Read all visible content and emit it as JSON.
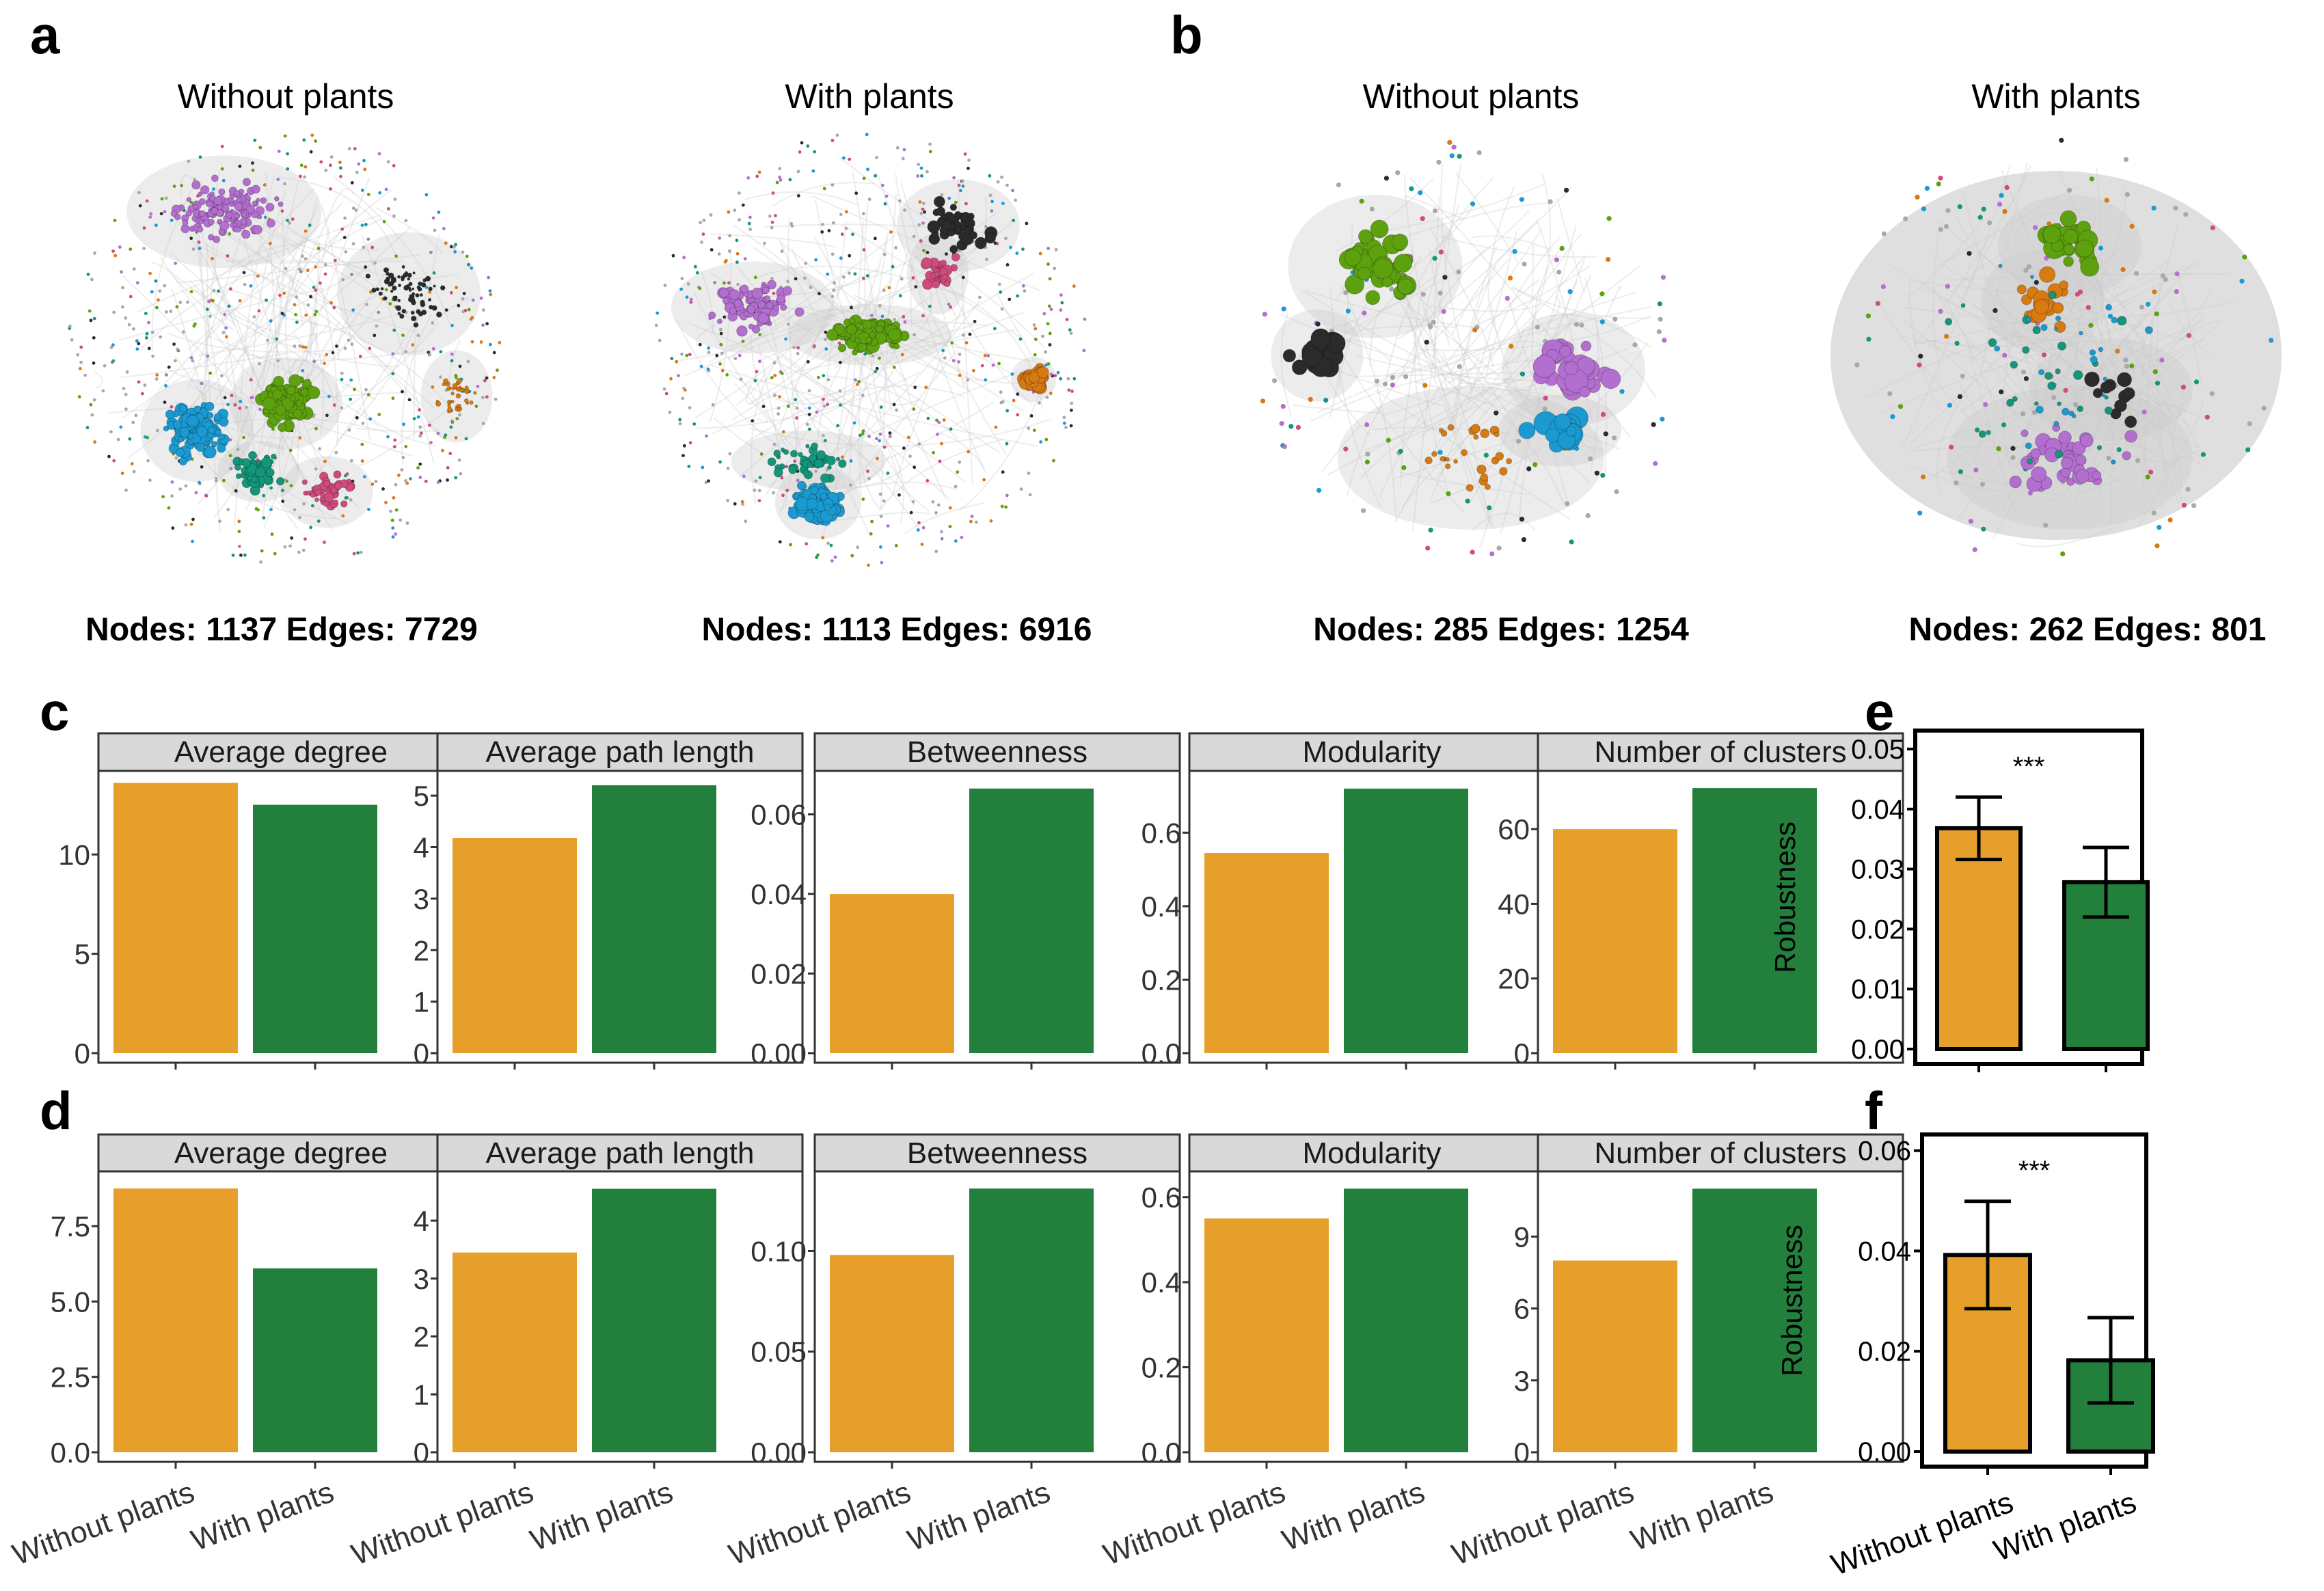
{
  "panel_labels": {
    "a": "a",
    "b": "b",
    "c": "c",
    "d": "d",
    "e": "e",
    "f": "f"
  },
  "networks": [
    {
      "panel": "a",
      "title": "Without plants",
      "stats": "Nodes: 1137  Edges: 7729"
    },
    {
      "panel": "a",
      "title": "With plants",
      "stats": "Nodes: 1113  Edges: 6916"
    },
    {
      "panel": "b",
      "title": "Without plants",
      "stats": "Nodes: 285  Edges: 1254"
    },
    {
      "panel": "b",
      "title": "With plants",
      "stats": "Nodes: 262  Edges: 801"
    }
  ],
  "colors": {
    "without": "#E69F2B",
    "with": "#22803C",
    "strip": "#D9D9D9",
    "purple": "#B36FD0",
    "green": "#5EA10F",
    "blue": "#1A9AD0",
    "teal": "#13967A",
    "pink": "#D04B7D",
    "orange": "#D77A12",
    "black": "#2B2B2B",
    "grey": "#A8A8A8"
  },
  "chart_data": [
    {
      "panel": "c",
      "type": "bar",
      "title": "Average degree",
      "categories": [
        "Without plants",
        "With plants"
      ],
      "values": [
        13.6,
        12.5
      ],
      "ylim": [
        0,
        14.0
      ],
      "yticks": [
        0,
        5,
        10
      ],
      "ytick_labels": [
        "0",
        "5",
        "10"
      ]
    },
    {
      "panel": "c",
      "type": "bar",
      "title": "Average path length",
      "categories": [
        "Without plants",
        "With plants"
      ],
      "values": [
        4.18,
        5.2
      ],
      "ylim": [
        0,
        5.4
      ],
      "yticks": [
        0,
        1,
        2,
        3,
        4,
        5
      ],
      "ytick_labels": [
        "0",
        "1",
        "2",
        "3",
        "4",
        "5"
      ]
    },
    {
      "panel": "c",
      "type": "bar",
      "title": "Betweenness",
      "categories": [
        "Without plants",
        "With plants"
      ],
      "values": [
        0.04,
        0.0665
      ],
      "ylim": [
        0,
        0.0699
      ],
      "yticks": [
        0,
        0.02,
        0.04,
        0.06
      ],
      "ytick_labels": [
        "0.00",
        "0.02",
        "0.04",
        "0.06"
      ]
    },
    {
      "panel": "c",
      "type": "bar",
      "title": "Modularity",
      "categories": [
        "Without plants",
        "With plants"
      ],
      "values": [
        0.545,
        0.72
      ],
      "ylim": [
        0,
        0.757
      ],
      "yticks": [
        0,
        0.2,
        0.4,
        0.6
      ],
      "ytick_labels": [
        "0.0",
        "0.2",
        "0.4",
        "0.6"
      ]
    },
    {
      "panel": "c",
      "type": "bar",
      "title": "Number of clusters",
      "categories": [
        "Without plants",
        "With plants"
      ],
      "values": [
        60,
        71
      ],
      "ylim": [
        0,
        74.5
      ],
      "yticks": [
        0,
        20,
        40,
        60
      ],
      "ytick_labels": [
        "0",
        "20",
        "40",
        "60"
      ]
    },
    {
      "panel": "d",
      "type": "bar",
      "title": "Average degree",
      "categories": [
        "Without plants",
        "With plants"
      ],
      "values": [
        8.75,
        6.1
      ],
      "ylim": [
        0,
        9.18
      ],
      "yticks": [
        0,
        2.5,
        5,
        7.5
      ],
      "ytick_labels": [
        "0.0",
        "2.5",
        "5.0",
        "7.5"
      ]
    },
    {
      "panel": "d",
      "type": "bar",
      "title": "Average path length",
      "categories": [
        "Without plants",
        "With plants"
      ],
      "values": [
        3.45,
        4.55
      ],
      "ylim": [
        0,
        4.78
      ],
      "yticks": [
        0,
        1,
        2,
        3,
        4
      ],
      "ytick_labels": [
        "0",
        "1",
        "2",
        "3",
        "4"
      ]
    },
    {
      "panel": "d",
      "type": "bar",
      "title": "Betweenness",
      "categories": [
        "Without plants",
        "With plants"
      ],
      "values": [
        0.098,
        0.131
      ],
      "ylim": [
        0,
        0.1375
      ],
      "yticks": [
        0,
        0.05,
        0.1
      ],
      "ytick_labels": [
        "0.00",
        "0.05",
        "0.10"
      ]
    },
    {
      "panel": "d",
      "type": "bar",
      "title": "Modularity",
      "categories": [
        "Without plants",
        "With plants"
      ],
      "values": [
        0.55,
        0.62
      ],
      "ylim": [
        0,
        0.651
      ],
      "yticks": [
        0,
        0.2,
        0.4,
        0.6
      ],
      "ytick_labels": [
        "0.0",
        "0.2",
        "0.4",
        "0.6"
      ]
    },
    {
      "panel": "d",
      "type": "bar",
      "title": "Number of clusters",
      "categories": [
        "Without plants",
        "With plants"
      ],
      "values": [
        8,
        11
      ],
      "ylim": [
        0,
        11.55
      ],
      "yticks": [
        0,
        3,
        6,
        9
      ],
      "ytick_labels": [
        "0",
        "3",
        "6",
        "9"
      ]
    },
    {
      "panel": "e",
      "type": "bar",
      "title": "",
      "ylabel": "Robustness",
      "categories": [
        "Without plants",
        "With plants"
      ],
      "values": [
        0.0368,
        0.0278
      ],
      "errors": [
        0.0052,
        0.0058
      ],
      "significance": "***",
      "ylim": [
        0,
        0.0508
      ],
      "yticks": [
        0,
        0.01,
        0.02,
        0.03,
        0.04,
        0.05
      ],
      "ytick_labels": [
        "0.00",
        "0.01",
        "0.02",
        "0.03",
        "0.04",
        "0.05"
      ]
    },
    {
      "panel": "f",
      "type": "bar",
      "title": "",
      "ylabel": "Robustness",
      "categories": [
        "Without plants",
        "With plants"
      ],
      "values": [
        0.0392,
        0.0182
      ],
      "errors": [
        0.0107,
        0.0085
      ],
      "significance": "***",
      "ylim": [
        0,
        0.0605
      ],
      "yticks": [
        0,
        0.02,
        0.04,
        0.06
      ],
      "ytick_labels": [
        "0.00",
        "0.02",
        "0.04",
        "0.06"
      ]
    }
  ]
}
